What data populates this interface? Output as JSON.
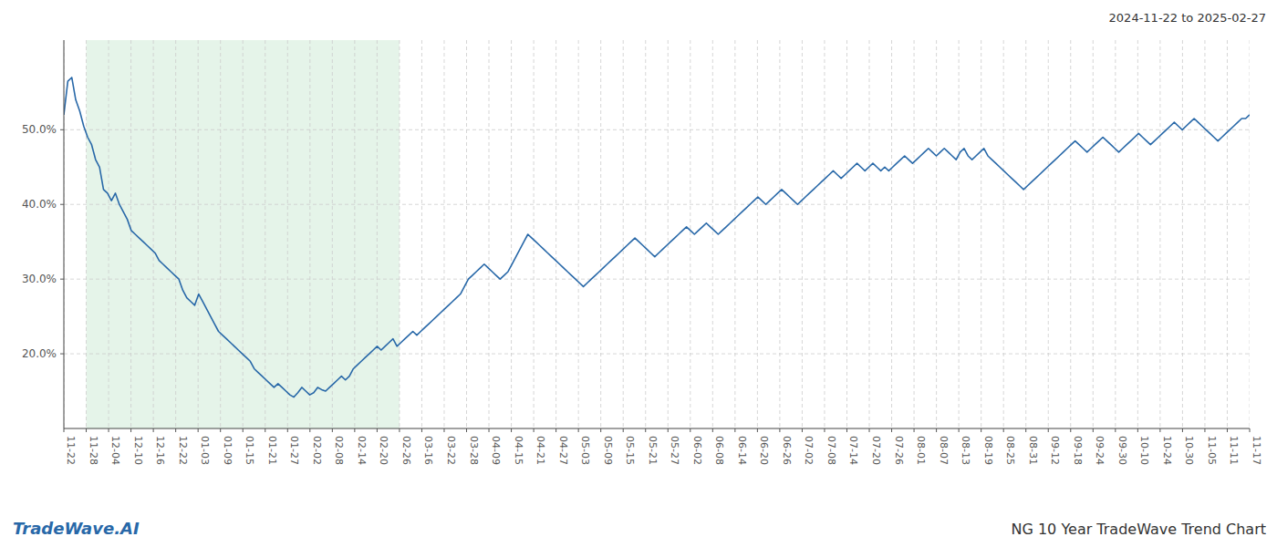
{
  "chart_data": {
    "type": "line",
    "title": "NG 10 Year TradeWave Trend Chart",
    "subtitle": "2024-11-22 to 2025-02-27",
    "annotations": [
      {
        "text": "TradeWave.AI"
      }
    ],
    "color": "#2868a8",
    "grid": true,
    "shaded_range": {
      "from": "11-28",
      "to": "02-26",
      "color": "#d4edda"
    },
    "xlim": [
      0,
      299
    ],
    "xticks": [
      {
        "value": 0,
        "label": "11-22"
      },
      {
        "value": 5.6415,
        "label": "11-28"
      },
      {
        "value": 11.283,
        "label": "12-04"
      },
      {
        "value": 16.9245,
        "label": "12-10"
      },
      {
        "value": 22.566,
        "label": "12-16"
      },
      {
        "value": 28.2075,
        "label": "12-22"
      },
      {
        "value": 33.8491,
        "label": "01-03"
      },
      {
        "value": 39.4906,
        "label": "01-09"
      },
      {
        "value": 45.1321,
        "label": "01-15"
      },
      {
        "value": 50.7736,
        "label": "01-21"
      },
      {
        "value": 56.4151,
        "label": "01-27"
      },
      {
        "value": 62.0566,
        "label": "02-02"
      },
      {
        "value": 67.6981,
        "label": "02-08"
      },
      {
        "value": 73.3396,
        "label": "02-14"
      },
      {
        "value": 78.9811,
        "label": "02-20"
      },
      {
        "value": 84.6226,
        "label": "02-26"
      },
      {
        "value": 90.2642,
        "label": "03-16"
      },
      {
        "value": 95.9057,
        "label": "03-22"
      },
      {
        "value": 101.5472,
        "label": "03-28"
      },
      {
        "value": 107.1887,
        "label": "04-09"
      },
      {
        "value": 112.8302,
        "label": "04-15"
      },
      {
        "value": 118.4717,
        "label": "04-21"
      },
      {
        "value": 124.1132,
        "label": "04-27"
      },
      {
        "value": 129.7547,
        "label": "05-03"
      },
      {
        "value": 135.3962,
        "label": "05-09"
      },
      {
        "value": 141.0377,
        "label": "05-15"
      },
      {
        "value": 146.6792,
        "label": "05-21"
      },
      {
        "value": 152.3208,
        "label": "05-27"
      },
      {
        "value": 157.9623,
        "label": "06-02"
      },
      {
        "value": 163.6038,
        "label": "06-08"
      },
      {
        "value": 169.2453,
        "label": "06-14"
      },
      {
        "value": 174.8868,
        "label": "06-20"
      },
      {
        "value": 180.5283,
        "label": "06-26"
      },
      {
        "value": 186.1698,
        "label": "07-02"
      },
      {
        "value": 191.8113,
        "label": "07-08"
      },
      {
        "value": 197.4528,
        "label": "07-14"
      },
      {
        "value": 203.0943,
        "label": "07-20"
      },
      {
        "value": 208.7358,
        "label": "07-26"
      },
      {
        "value": 214.3774,
        "label": "08-01"
      },
      {
        "value": 220.0189,
        "label": "08-07"
      },
      {
        "value": 225.6604,
        "label": "08-13"
      },
      {
        "value": 231.3019,
        "label": "08-19"
      },
      {
        "value": 236.9434,
        "label": "08-25"
      },
      {
        "value": 242.5849,
        "label": "08-31"
      },
      {
        "value": 248.2264,
        "label": "09-12"
      },
      {
        "value": 253.8679,
        "label": "09-18"
      },
      {
        "value": 259.5094,
        "label": "09-24"
      },
      {
        "value": 265.1509,
        "label": "09-30"
      },
      {
        "value": 270.7925,
        "label": "10-10"
      },
      {
        "value": 276.434,
        "label": "10-24"
      },
      {
        "value": 282.0755,
        "label": "10-30"
      },
      {
        "value": 287.717,
        "label": "11-05"
      },
      {
        "value": 293.3585,
        "label": "11-11"
      },
      {
        "value": 299,
        "label": "11-17"
      }
    ],
    "ylim": [
      10,
      62
    ],
    "yticks": [
      {
        "value": 20,
        "label": "20.0%"
      },
      {
        "value": 30,
        "label": "30.0%"
      },
      {
        "value": 40,
        "label": "40.0%"
      },
      {
        "value": 50,
        "label": "50.0%"
      }
    ],
    "values": [
      52.0,
      56.5,
      57.0,
      54.0,
      52.5,
      50.5,
      49.0,
      48.0,
      46.0,
      45.0,
      42.0,
      41.5,
      40.5,
      41.5,
      40.0,
      39.0,
      38.0,
      36.5,
      36.0,
      35.5,
      35.0,
      34.5,
      34.0,
      33.5,
      32.5,
      32.0,
      31.5,
      31.0,
      30.5,
      30.0,
      28.5,
      27.5,
      27.0,
      26.5,
      28.0,
      27.0,
      26.0,
      25.0,
      24.0,
      23.0,
      22.5,
      22.0,
      21.5,
      21.0,
      20.5,
      20.0,
      19.5,
      19.0,
      18.0,
      17.5,
      17.0,
      16.5,
      16.0,
      15.5,
      16.0,
      15.5,
      15.0,
      14.5,
      14.2,
      14.8,
      15.5,
      15.0,
      14.5,
      14.8,
      15.5,
      15.2,
      15.0,
      15.5,
      16.0,
      16.5,
      17.0,
      16.5,
      17.0,
      18.0,
      18.5,
      19.0,
      19.5,
      20.0,
      20.5,
      21.0,
      20.5,
      21.0,
      21.5,
      22.0,
      21.0,
      21.5,
      22.0,
      22.5,
      23.0,
      22.5,
      23.0,
      23.5,
      24.0,
      24.5,
      25.0,
      25.5,
      26.0,
      26.5,
      27.0,
      27.5,
      28.0,
      29.0,
      30.0,
      30.5,
      31.0,
      31.5,
      32.0,
      31.5,
      31.0,
      30.5,
      30.0,
      30.5,
      31.0,
      32.0,
      33.0,
      34.0,
      35.0,
      36.0,
      35.5,
      35.0,
      34.5,
      34.0,
      33.5,
      33.0,
      32.5,
      32.0,
      31.5,
      31.0,
      30.5,
      30.0,
      29.5,
      29.0,
      29.5,
      30.0,
      30.5,
      31.0,
      31.5,
      32.0,
      32.5,
      33.0,
      33.5,
      34.0,
      34.5,
      35.0,
      35.5,
      35.0,
      34.5,
      34.0,
      33.5,
      33.0,
      33.5,
      34.0,
      34.5,
      35.0,
      35.5,
      36.0,
      36.5,
      37.0,
      36.5,
      36.0,
      36.5,
      37.0,
      37.5,
      37.0,
      36.5,
      36.0,
      36.5,
      37.0,
      37.5,
      38.0,
      38.5,
      39.0,
      39.5,
      40.0,
      40.5,
      41.0,
      40.5,
      40.0,
      40.5,
      41.0,
      41.5,
      42.0,
      41.5,
      41.0,
      40.5,
      40.0,
      40.5,
      41.0,
      41.5,
      42.0,
      42.5,
      43.0,
      43.5,
      44.0,
      44.5,
      44.0,
      43.5,
      44.0,
      44.5,
      45.0,
      45.5,
      45.0,
      44.5,
      45.0,
      45.5,
      45.0,
      44.5,
      45.0,
      44.5,
      45.0,
      45.5,
      46.0,
      46.5,
      46.0,
      45.5,
      46.0,
      46.5,
      47.0,
      47.5,
      47.0,
      46.5,
      47.0,
      47.5,
      47.0,
      46.5,
      46.0,
      47.0,
      47.5,
      46.5,
      46.0,
      46.5,
      47.0,
      47.5,
      46.5,
      46.0,
      45.5,
      45.0,
      44.5,
      44.0,
      43.5,
      43.0,
      42.5,
      42.0,
      42.5,
      43.0,
      43.5,
      44.0,
      44.5,
      45.0,
      45.5,
      46.0,
      46.5,
      47.0,
      47.5,
      48.0,
      48.5,
      48.0,
      47.5,
      47.0,
      47.5,
      48.0,
      48.5,
      49.0,
      48.5,
      48.0,
      47.5,
      47.0,
      47.5,
      48.0,
      48.5,
      49.0,
      49.5,
      49.0,
      48.5,
      48.0,
      48.5,
      49.0,
      49.5,
      50.0,
      50.5,
      51.0,
      50.5,
      50.0,
      50.5,
      51.0,
      51.5,
      51.0,
      50.5,
      50.0,
      49.5,
      49.0,
      48.5,
      49.0,
      49.5,
      50.0,
      50.5,
      51.0,
      51.5,
      51.5,
      52.0
    ]
  }
}
